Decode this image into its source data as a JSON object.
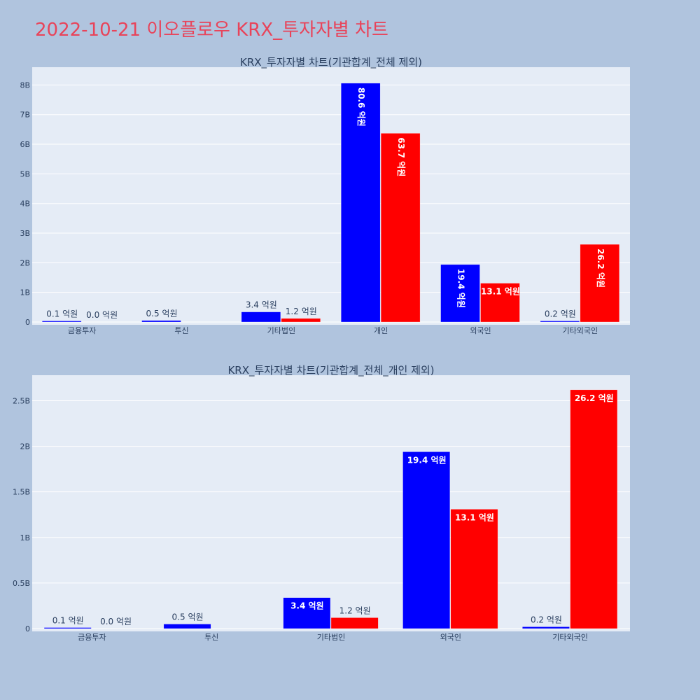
{
  "page": {
    "title": "2022-10-21 이오플로우 KRX_투자자별 차트"
  },
  "colors": {
    "buy": "#0000ff",
    "sell": "#ff0000",
    "plot_bg": "#e5ecf6",
    "page_bg": "#b0c4de",
    "title": "#e8445a"
  },
  "chart_data": [
    {
      "type": "bar",
      "title": "KRX_투자자별 차트(기관합계_전체 제외)",
      "categories": [
        "금융투자",
        "투신",
        "기타법인",
        "개인",
        "외국인",
        "기타외국인"
      ],
      "ylim": [
        0,
        8.6
      ],
      "yticks": [
        0,
        1,
        2,
        3,
        4,
        5,
        6,
        7,
        8
      ],
      "ytick_labels": [
        "0",
        "1B",
        "2B",
        "3B",
        "4B",
        "5B",
        "6B",
        "7B",
        "8B"
      ],
      "grid": true,
      "series": [
        {
          "color": "#0000ff",
          "values": [
            0.01,
            0.05,
            0.34,
            8.06,
            1.94,
            0.02
          ],
          "labels": [
            "0.1 억원",
            "0.5 억원",
            "3.4 억원",
            "80.6 억원",
            "19.4 억원",
            "0.2 억원"
          ]
        },
        {
          "color": "#ff0000",
          "values": [
            0.0,
            0.0,
            0.12,
            6.37,
            1.31,
            2.62
          ],
          "labels": [
            "0.0 억원",
            "",
            "1.2 억원",
            "63.7 억원",
            "13.1 억원",
            "26.2 억원"
          ]
        }
      ]
    },
    {
      "type": "bar",
      "title": "KRX_투자자별 차트(기관합계_전체_개인 제외)",
      "categories": [
        "금융투자",
        "투신",
        "기타법인",
        "외국인",
        "기타외국인"
      ],
      "ylim": [
        0,
        2.78
      ],
      "yticks": [
        0,
        0.5,
        1,
        1.5,
        2,
        2.5
      ],
      "ytick_labels": [
        "0",
        "0.5B",
        "1B",
        "1.5B",
        "2B",
        "2.5B"
      ],
      "grid": true,
      "series": [
        {
          "color": "#0000ff",
          "values": [
            0.01,
            0.05,
            0.34,
            1.94,
            0.02
          ],
          "labels": [
            "0.1 억원",
            "0.5 억원",
            "3.4 억원",
            "19.4 억원",
            "0.2 억원"
          ]
        },
        {
          "color": "#ff0000",
          "values": [
            0.0,
            0.0,
            0.12,
            1.31,
            2.62
          ],
          "labels": [
            "0.0 억원",
            "",
            "1.2 억원",
            "13.1 억원",
            "26.2 억원"
          ]
        }
      ]
    }
  ]
}
